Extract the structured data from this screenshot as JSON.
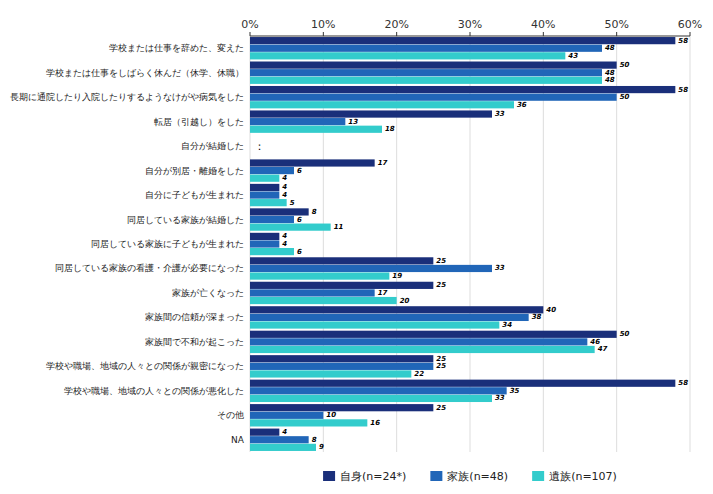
{
  "chart_data": {
    "type": "bar",
    "orientation": "horizontal",
    "categories": [
      "学校または仕事を辞めた、変えた",
      "学校または仕事をしばらく休んだ（休学、休職）",
      "長期に通院したり入院したりするようなけがや病気をした",
      "転居（引越し）をした",
      "自分が結婚した",
      "自分が別居・離婚をした",
      "自分に子どもが生まれた",
      "同居している家族が結婚した",
      "同居している家族に子どもが生まれた",
      "同居している家族の看護・介護が必要になった",
      "家族が亡くなった",
      "家族間の信頼が深まった",
      "家族間で不和が起こった",
      "学校や職場、地域の人々との関係が親密になった",
      "学校や職場、地域の人々との関係が悪化した",
      "その他",
      "NA"
    ],
    "series": [
      {
        "name": "自身(n=24*)",
        "color": "#1a2f7a",
        "values": [
          58,
          50,
          58,
          33,
          0,
          17,
          4,
          8,
          4,
          25,
          25,
          40,
          50,
          25,
          58,
          25,
          4
        ]
      },
      {
        "name": "家族(n=48)",
        "color": "#2166b8",
        "values": [
          48,
          48,
          50,
          13,
          0,
          6,
          4,
          6,
          4,
          33,
          17,
          38,
          46,
          25,
          35,
          10,
          8
        ]
      },
      {
        "name": "遺族(n=107)",
        "color": "#33cccc",
        "values": [
          43,
          48,
          36,
          18,
          0,
          4,
          5,
          11,
          6,
          19,
          20,
          34,
          47,
          22,
          33,
          16,
          9
        ]
      }
    ],
    "xlim": [
      0,
      60
    ],
    "xticks": [
      {
        "value": 0,
        "label": "0%"
      },
      {
        "value": 10,
        "label": "10%"
      },
      {
        "value": 20,
        "label": "20%"
      },
      {
        "value": 30,
        "label": "30%"
      },
      {
        "value": 40,
        "label": "40%"
      },
      {
        "value": 50,
        "label": "50%"
      },
      {
        "value": 60,
        "label": "60%"
      }
    ],
    "grid": true,
    "data_labels": true,
    "legend": "bottom",
    "annotations": [
      {
        "text": "：",
        "category": "自分が結婚した"
      }
    ]
  }
}
